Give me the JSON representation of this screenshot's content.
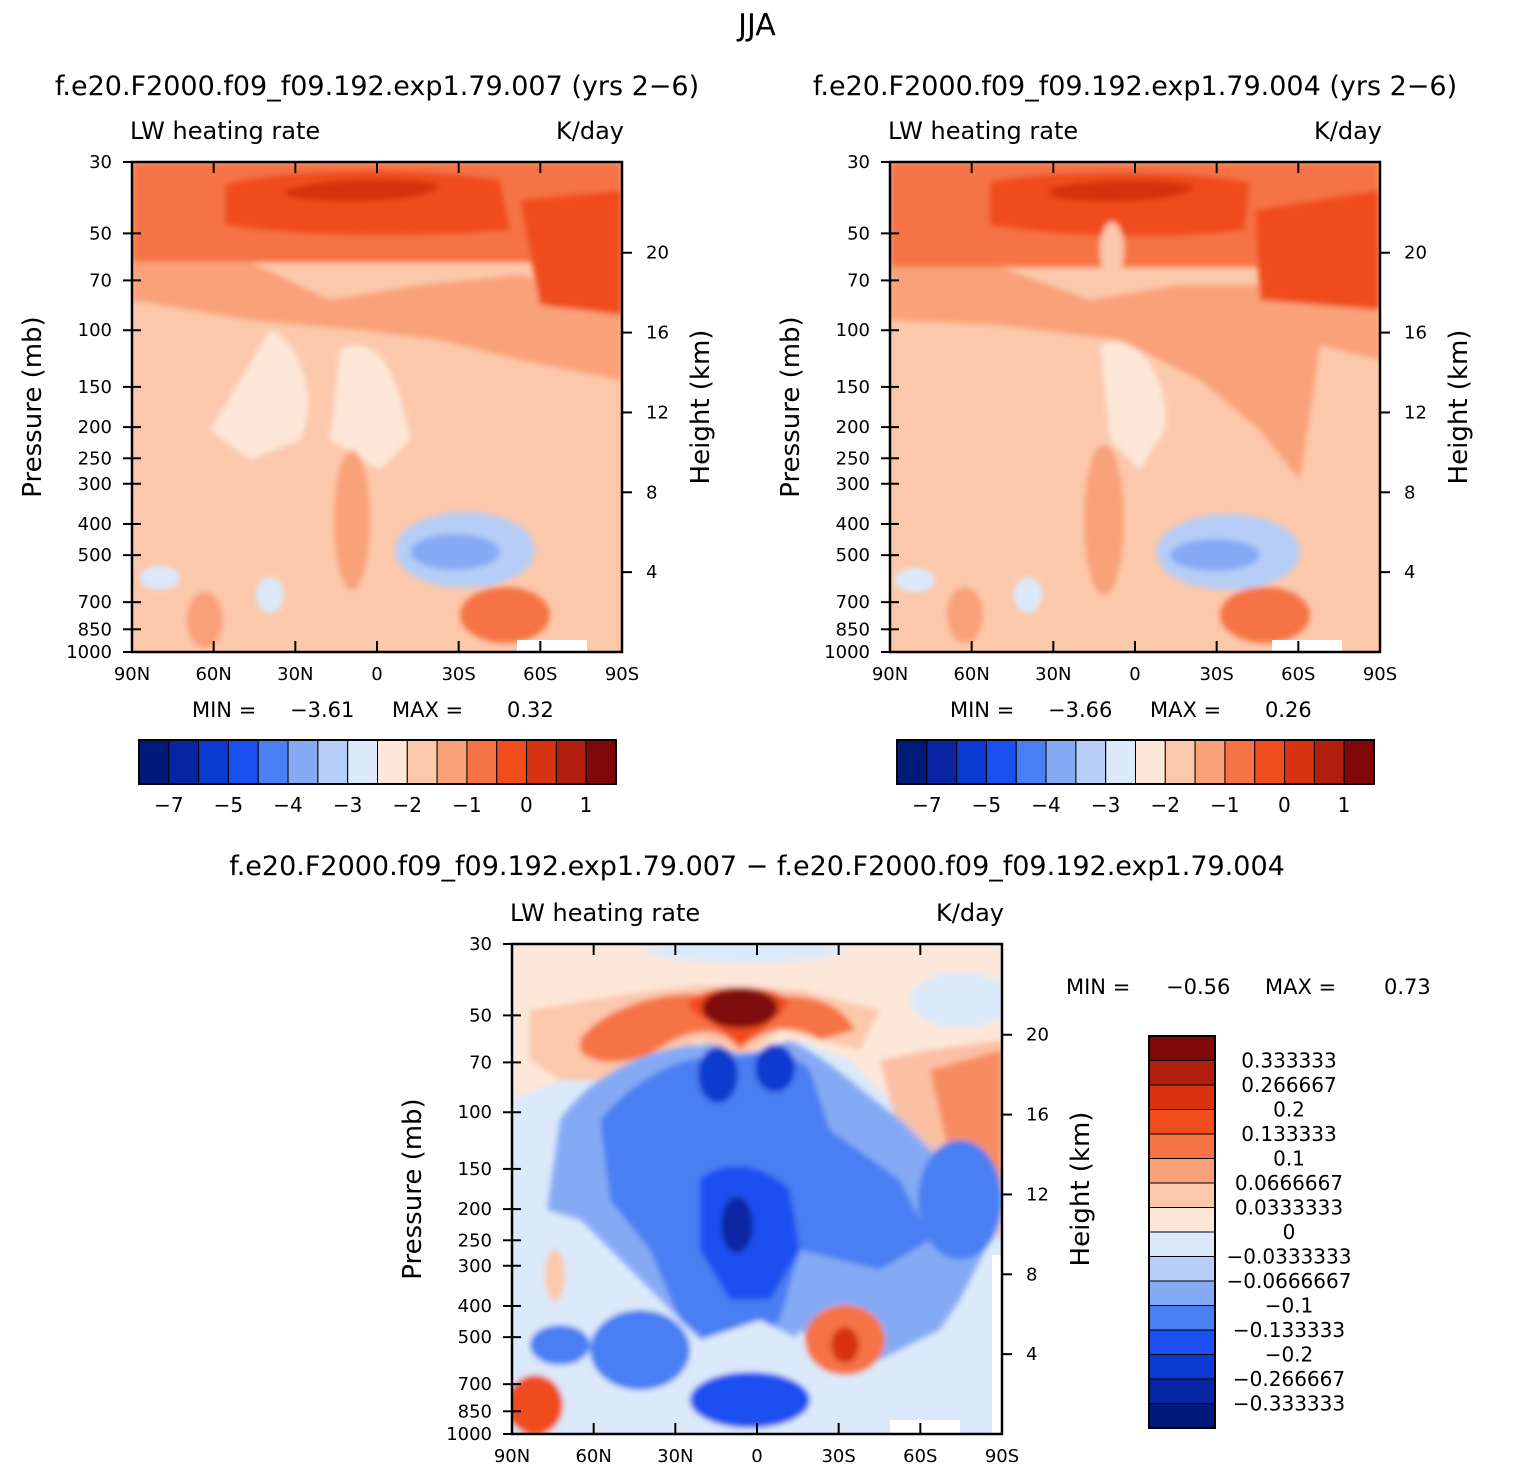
{
  "figure": {
    "title": "JJA"
  },
  "panels": [
    {
      "title": "f.e20.F2000.f09_f09.192.exp1.79.007 (yrs 2−6)",
      "left_label": "LW heating rate",
      "right_label": "K/day",
      "min_label": "MIN =",
      "min_value": "−3.61",
      "max_label": "MAX =",
      "max_value": "0.32"
    },
    {
      "title": "f.e20.F2000.f09_f09.192.exp1.79.004 (yrs 2−6)",
      "left_label": "LW heating rate",
      "right_label": "K/day",
      "min_label": "MIN =",
      "min_value": "−3.66",
      "max_label": "MAX =",
      "max_value": "0.26"
    },
    {
      "title": "f.e20.F2000.f09_f09.192.exp1.79.007 − f.e20.F2000.f09_f09.192.exp1.79.004",
      "left_label": "LW heating rate",
      "right_label": "K/day",
      "min_label": "MIN =",
      "min_value": "−0.56",
      "max_label": "MAX =",
      "max_value": "0.73"
    }
  ],
  "chart_data": [
    {
      "type": "heatmap",
      "name": "case_007",
      "title": "f.e20.F2000.f09_f09.192.exp1.79.007 (yrs 2-6)",
      "variable": "LW heating rate",
      "units": "K/day",
      "xlabel": "",
      "ylabel": "Pressure (mb)",
      "y2label": "Height (km)",
      "x_ticks": [
        "90N",
        "60N",
        "30N",
        "0",
        "30S",
        "60S",
        "90S"
      ],
      "y_ticks": [
        30,
        50,
        70,
        100,
        150,
        200,
        250,
        300,
        400,
        500,
        700,
        850,
        1000
      ],
      "y2_ticks": [
        20,
        16,
        12,
        8,
        4
      ],
      "ylim": [
        1000,
        30
      ],
      "xlim": [
        "90N",
        "90S"
      ],
      "min": -3.61,
      "max": 0.32,
      "levels": [
        -7,
        -6.5,
        -6,
        -5.5,
        -5,
        -4.5,
        -4,
        -3.5,
        -3,
        -2.5,
        -2,
        -1.5,
        -1,
        -0.5,
        0,
        0.5,
        1,
        1.5
      ],
      "colorbar_labels": [
        "−7",
        "−5",
        "−4",
        "−3",
        "−2",
        "−1",
        "0",
        "1"
      ]
    },
    {
      "type": "heatmap",
      "name": "case_004",
      "title": "f.e20.F2000.f09_f09.192.exp1.79.004 (yrs 2-6)",
      "variable": "LW heating rate",
      "units": "K/day",
      "xlabel": "",
      "ylabel": "Pressure (mb)",
      "y2label": "Height (km)",
      "x_ticks": [
        "90N",
        "60N",
        "30N",
        "0",
        "30S",
        "60S",
        "90S"
      ],
      "y_ticks": [
        30,
        50,
        70,
        100,
        150,
        200,
        250,
        300,
        400,
        500,
        700,
        850,
        1000
      ],
      "y2_ticks": [
        20,
        16,
        12,
        8,
        4
      ],
      "ylim": [
        1000,
        30
      ],
      "xlim": [
        "90N",
        "90S"
      ],
      "min": -3.66,
      "max": 0.26,
      "levels": [
        -7,
        -6.5,
        -6,
        -5.5,
        -5,
        -4.5,
        -4,
        -3.5,
        -3,
        -2.5,
        -2,
        -1.5,
        -1,
        -0.5,
        0,
        0.5,
        1,
        1.5
      ],
      "colorbar_labels": [
        "−7",
        "−5",
        "−4",
        "−3",
        "−2",
        "−1",
        "0",
        "1"
      ]
    },
    {
      "type": "heatmap",
      "name": "difference",
      "title": "f.e20.F2000.f09_f09.192.exp1.79.007 - f.e20.F2000.f09_f09.192.exp1.79.004",
      "variable": "LW heating rate",
      "units": "K/day",
      "xlabel": "",
      "ylabel": "Pressure (mb)",
      "y2label": "Height (km)",
      "x_ticks": [
        "90N",
        "60N",
        "30N",
        "0",
        "30S",
        "60S",
        "90S"
      ],
      "y_ticks": [
        30,
        50,
        70,
        100,
        150,
        200,
        250,
        300,
        400,
        500,
        700,
        850,
        1000
      ],
      "y2_ticks": [
        20,
        16,
        12,
        8,
        4
      ],
      "ylim": [
        1000,
        30
      ],
      "xlim": [
        "90N",
        "90S"
      ],
      "min": -0.56,
      "max": 0.73,
      "levels": [
        -0.333333,
        -0.266667,
        -0.2,
        -0.133333,
        -0.1,
        -0.0666667,
        -0.0333333,
        0,
        0.0333333,
        0.0666667,
        0.1,
        0.133333,
        0.2,
        0.266667,
        0.333333
      ],
      "colorbar_labels": [
        "0.333333",
        "0.266667",
        "0.2",
        "0.133333",
        "0.1",
        "0.0666667",
        "0.0333333",
        "0",
        "−0.0333333",
        "−0.0666667",
        "−0.1",
        "−0.133333",
        "−0.2",
        "−0.266667",
        "−0.333333"
      ]
    }
  ],
  "colors": {
    "colormap": [
      "#001a7a",
      "#0725a3",
      "#0a3ad0",
      "#1a50f0",
      "#4a7ff2",
      "#85aaf4",
      "#b6cdf7",
      "#dbe9fa",
      "#fde7d8",
      "#fcc8ab",
      "#f9a178",
      "#f57345",
      "#f04c1e",
      "#d73310",
      "#b21e0c",
      "#800808"
    ],
    "above_panel": "#ffffff"
  }
}
